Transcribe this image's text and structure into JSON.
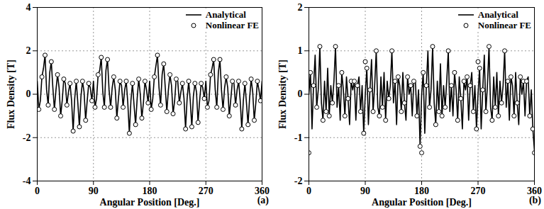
{
  "chart_data": [
    {
      "type": "line",
      "x_label": "Angular Position [Deg.]",
      "y_label": "Flux Density [T]",
      "annotation": "(a)",
      "xlim": [
        0,
        360
      ],
      "xticks": [
        0,
        90,
        180,
        270,
        360
      ],
      "ylim": [
        -4,
        4
      ],
      "yticks": [
        -4,
        -2,
        0,
        2,
        4
      ],
      "grid": true,
      "legend": "top-right",
      "series": [
        {
          "name": "Analytical",
          "type": "line",
          "color": "#000000",
          "line_style": "solid",
          "x": [
            0,
            2.5,
            5,
            7.5,
            10,
            12.5,
            15,
            17.5,
            20,
            22.5,
            25,
            27.5,
            30,
            32.5,
            35,
            37.5,
            40,
            42.5,
            45,
            47.5,
            50,
            52.5,
            55,
            57.5,
            60,
            62.5,
            65,
            67.5,
            70,
            72.5,
            75,
            77.5,
            80,
            82.5,
            85,
            87.5,
            90,
            92.5,
            95,
            97.5,
            100,
            102.5,
            105,
            107.5,
            110,
            112.5,
            115,
            117.5,
            120,
            122.5,
            125,
            127.5,
            130,
            132.5,
            135,
            137.5,
            140,
            142.5,
            145,
            147.5,
            150,
            152.5,
            155,
            157.5,
            160,
            162.5,
            165,
            167.5,
            170,
            172.5,
            175,
            177.5,
            180,
            182.5,
            185,
            187.5,
            190,
            192.5,
            195,
            197.5,
            200,
            202.5,
            205,
            207.5,
            210,
            212.5,
            215,
            217.5,
            220,
            222.5,
            225,
            227.5,
            230,
            232.5,
            235,
            237.5,
            240,
            242.5,
            245,
            247.5,
            250,
            252.5,
            255,
            257.5,
            260,
            262.5,
            265,
            267.5,
            270,
            272.5,
            275,
            277.5,
            280,
            282.5,
            285,
            287.5,
            290,
            292.5,
            295,
            297.5,
            300,
            302.5,
            305,
            307.5,
            310,
            312.5,
            315,
            317.5,
            320,
            322.5,
            325,
            327.5,
            330,
            332.5,
            335,
            337.5,
            340,
            342.5,
            345,
            347.5,
            350,
            352.5,
            355,
            357.5,
            360
          ],
          "values": [
            0.6,
            -0.7,
            -0.3,
            0.8,
            1.2,
            1.8,
            0.2,
            -0.5,
            1.0,
            1.5,
            0.3,
            -0.7,
            0.2,
            0.9,
            0.3,
            -1.0,
            -0.3,
            0.7,
            0.5,
            -0.5,
            0.1,
            0.5,
            -0.3,
            -1.7,
            -0.2,
            0.6,
            -0.4,
            -1.5,
            -0.1,
            0.6,
            0.1,
            -1.2,
            -0.3,
            0.5,
            0.3,
            -0.3,
            0.6,
            -0.6,
            -0.2,
            0.9,
            1.1,
            1.7,
            0.1,
            -0.6,
            1.1,
            1.6,
            0.2,
            -0.6,
            0.3,
            0.8,
            0.2,
            -1.1,
            -0.2,
            0.6,
            0.4,
            -0.6,
            0.2,
            0.6,
            -0.4,
            -1.8,
            -0.3,
            0.5,
            -0.5,
            -1.4,
            -0.2,
            0.7,
            0.0,
            -1.1,
            -0.4,
            0.6,
            0.2,
            -0.4,
            0.6,
            -0.7,
            -0.2,
            0.8,
            1.3,
            1.8,
            0.3,
            -0.5,
            0.9,
            1.4,
            0.3,
            -0.8,
            0.2,
            0.9,
            0.4,
            -0.9,
            -0.3,
            0.7,
            0.6,
            -0.4,
            0.1,
            0.5,
            -0.2,
            -1.6,
            -0.2,
            0.6,
            -0.3,
            -1.5,
            -0.1,
            0.5,
            0.1,
            -1.3,
            -0.3,
            0.5,
            0.3,
            -0.2,
            0.6,
            -0.6,
            -0.3,
            0.9,
            1.2,
            1.6,
            0.2,
            -0.6,
            1.0,
            1.6,
            0.2,
            -0.7,
            0.3,
            0.8,
            0.3,
            -1.0,
            -0.2,
            0.6,
            0.5,
            -0.5,
            0.2,
            0.6,
            -0.3,
            -1.6,
            -0.3,
            0.5,
            -0.4,
            -1.4,
            -0.2,
            0.7,
            0.1,
            -1.2,
            -0.4,
            0.6,
            0.2,
            -0.3,
            0.6
          ]
        },
        {
          "name": "Nonlinear FE",
          "type": "scatter",
          "color": "#000000",
          "marker": "circle",
          "x": [
            2.5,
            7.5,
            12.5,
            17.5,
            22.5,
            27.5,
            32.5,
            37.5,
            42.5,
            47.5,
            52.5,
            57.5,
            62.5,
            67.5,
            72.5,
            77.5,
            82.5,
            87.5,
            92.5,
            97.5,
            102.5,
            107.5,
            112.5,
            117.5,
            122.5,
            127.5,
            132.5,
            137.5,
            142.5,
            147.5,
            152.5,
            157.5,
            162.5,
            167.5,
            172.5,
            177.5,
            182.5,
            187.5,
            192.5,
            197.5,
            202.5,
            207.5,
            212.5,
            217.5,
            222.5,
            227.5,
            232.5,
            237.5,
            242.5,
            247.5,
            252.5,
            257.5,
            262.5,
            267.5,
            272.5,
            277.5,
            282.5,
            287.5,
            292.5,
            297.5,
            302.5,
            307.5,
            312.5,
            317.5,
            322.5,
            327.5,
            332.5,
            337.5,
            342.5,
            347.5,
            352.5,
            357.5
          ],
          "values": [
            -0.7,
            0.8,
            1.8,
            -0.5,
            1.5,
            -0.7,
            0.9,
            -1.0,
            0.7,
            -0.5,
            0.5,
            -1.7,
            0.6,
            -1.5,
            0.6,
            -1.2,
            0.5,
            -0.3,
            -0.6,
            0.9,
            1.7,
            -0.6,
            1.6,
            -0.6,
            0.8,
            -1.1,
            0.6,
            -0.6,
            0.6,
            -1.8,
            0.5,
            -1.4,
            0.7,
            -1.1,
            0.6,
            -0.4,
            -0.7,
            0.8,
            1.8,
            -0.5,
            1.4,
            -0.8,
            0.9,
            -0.9,
            0.7,
            -0.4,
            0.5,
            -1.6,
            0.6,
            -1.5,
            0.5,
            -1.3,
            0.5,
            -0.2,
            -0.6,
            0.9,
            1.6,
            -0.6,
            1.6,
            -0.7,
            0.8,
            -1.0,
            0.6,
            -0.5,
            0.6,
            -1.6,
            0.5,
            -1.4,
            0.7,
            -1.2,
            0.6,
            -0.3
          ]
        }
      ]
    },
    {
      "type": "line",
      "x_label": "Angular Position [Deg.]",
      "y_label": "Flux Density [T]",
      "annotation": "(b)",
      "xlim": [
        0,
        360
      ],
      "xticks": [
        0,
        90,
        180,
        270,
        360
      ],
      "ylim": [
        -2,
        2
      ],
      "yticks": [
        -2,
        -1,
        0,
        1,
        2
      ],
      "grid": true,
      "legend": "top-right",
      "series": [
        {
          "name": "Analytical",
          "type": "line",
          "color": "#000000",
          "line_style": "solid",
          "x": [
            0,
            2.5,
            5,
            7.5,
            10,
            12.5,
            15,
            17.5,
            20,
            22.5,
            25,
            27.5,
            30,
            32.5,
            35,
            37.5,
            40,
            42.5,
            45,
            47.5,
            50,
            52.5,
            55,
            57.5,
            60,
            62.5,
            65,
            67.5,
            70,
            72.5,
            75,
            77.5,
            80,
            82.5,
            85,
            87.5,
            90,
            92.5,
            95,
            97.5,
            100,
            102.5,
            105,
            107.5,
            110,
            112.5,
            115,
            117.5,
            120,
            122.5,
            125,
            127.5,
            130,
            132.5,
            135,
            137.5,
            140,
            142.5,
            145,
            147.5,
            150,
            152.5,
            155,
            157.5,
            160,
            162.5,
            165,
            167.5,
            170,
            172.5,
            175,
            177.5,
            180,
            182.5,
            185,
            187.5,
            190,
            192.5,
            195,
            197.5,
            200,
            202.5,
            205,
            207.5,
            210,
            212.5,
            215,
            217.5,
            220,
            222.5,
            225,
            227.5,
            230,
            232.5,
            235,
            237.5,
            240,
            242.5,
            245,
            247.5,
            250,
            252.5,
            255,
            257.5,
            260,
            262.5,
            265,
            267.5,
            270,
            272.5,
            275,
            277.5,
            280,
            282.5,
            285,
            287.5,
            290,
            292.5,
            295,
            297.5,
            300,
            302.5,
            305,
            307.5,
            310,
            312.5,
            315,
            317.5,
            320,
            322.5,
            325,
            327.5,
            330,
            332.5,
            335,
            337.5,
            340,
            342.5,
            345,
            347.5,
            350,
            352.5,
            355,
            357.5,
            360
          ],
          "values": [
            0,
            0.5,
            -0.8,
            0.2,
            0.9,
            -0.3,
            0.1,
            1.1,
            -0.2,
            -0.6,
            0.3,
            -0.4,
            0.6,
            -0.5,
            0.2,
            -0.2,
            0.3,
            1.1,
            -0.3,
            0.2,
            -0.6,
            0.5,
            0.1,
            -0.5,
            0.4,
            -0.1,
            -0.7,
            0.3,
            0.1,
            0.3,
            -0.6,
            0.2,
            0.4,
            -0.4,
            0.2,
            -0.9,
            0,
            0.6,
            -0.7,
            0.1,
            0.8,
            -0.4,
            0.2,
            1.0,
            -0.3,
            -0.5,
            0.4,
            -0.3,
            0.5,
            -0.6,
            0.3,
            -0.1,
            0.2,
            1.0,
            -0.2,
            0.3,
            -0.7,
            0.4,
            0.2,
            -0.4,
            0.5,
            -0.2,
            -0.6,
            0.4,
            0.0,
            0.2,
            -0.5,
            0.3,
            0.3,
            -0.5,
            0.1,
            -1.2,
            0,
            0.5,
            -0.9,
            0.2,
            1.0,
            -0.3,
            0.1,
            1.1,
            -0.2,
            -0.7,
            0.3,
            -0.4,
            0.7,
            -0.5,
            0.2,
            -0.3,
            0.3,
            1.0,
            -0.4,
            0.2,
            -0.5,
            0.5,
            0.1,
            -0.6,
            0.4,
            -0.1,
            -0.8,
            0.3,
            0.1,
            0.4,
            -0.6,
            0.2,
            0.5,
            -0.4,
            0.2,
            -0.8,
            0,
            0.6,
            -0.8,
            0.1,
            0.9,
            -0.4,
            0.2,
            1.1,
            -0.3,
            -0.6,
            0.4,
            -0.3,
            0.5,
            -0.5,
            0.3,
            -0.2,
            0.2,
            1.0,
            -0.3,
            0.3,
            -0.6,
            0.4,
            0.2,
            -0.5,
            0.5,
            -0.2,
            -0.7,
            0.4,
            0.0,
            0.3,
            -0.5,
            0.3,
            0.4,
            -0.5,
            0.1,
            -0.8,
            -1.3
          ]
        },
        {
          "name": "Nonlinear FE",
          "type": "scatter",
          "color": "#000000",
          "marker": "circle",
          "x": [
            0,
            2.5,
            7.5,
            12.5,
            17.5,
            22.5,
            27.5,
            32.5,
            37.5,
            42.5,
            47.5,
            52.5,
            57.5,
            62.5,
            67.5,
            72.5,
            77.5,
            82.5,
            87.5,
            90,
            92.5,
            97.5,
            102.5,
            107.5,
            112.5,
            117.5,
            122.5,
            127.5,
            132.5,
            137.5,
            142.5,
            147.5,
            152.5,
            157.5,
            162.5,
            167.5,
            172.5,
            177.5,
            180,
            182.5,
            187.5,
            192.5,
            197.5,
            202.5,
            207.5,
            212.5,
            217.5,
            222.5,
            227.5,
            232.5,
            237.5,
            242.5,
            247.5,
            252.5,
            257.5,
            262.5,
            267.5,
            270,
            272.5,
            277.5,
            282.5,
            287.5,
            292.5,
            297.5,
            302.5,
            307.5,
            312.5,
            317.5,
            322.5,
            327.5,
            332.5,
            337.5,
            342.5,
            347.5,
            352.5,
            357.5,
            360
          ],
          "values": [
            -1.35,
            0.5,
            0.2,
            -0.3,
            1.1,
            -0.6,
            -0.4,
            -0.5,
            -0.2,
            1.1,
            0.2,
            0.5,
            -0.5,
            -0.1,
            0.3,
            0.3,
            0.2,
            -0.4,
            -0.9,
            0.75,
            0.6,
            0.1,
            -0.4,
            1.0,
            -0.5,
            -0.3,
            -0.6,
            -0.1,
            1.0,
            0.3,
            0.4,
            -0.4,
            -0.2,
            0.4,
            0.2,
            0.3,
            -0.5,
            -1.2,
            -1.35,
            0.5,
            0.2,
            -0.3,
            1.1,
            -0.7,
            -0.4,
            -0.5,
            -0.3,
            1.0,
            0.2,
            0.5,
            -0.6,
            -0.1,
            0.3,
            0.4,
            0.2,
            -0.4,
            -0.8,
            0.75,
            0.6,
            0.1,
            -0.4,
            1.1,
            -0.6,
            -0.3,
            -0.5,
            -0.2,
            1.0,
            0.3,
            0.4,
            -0.5,
            -0.2,
            0.4,
            0.3,
            0.3,
            -0.5,
            -0.8,
            -1.35
          ]
        }
      ]
    }
  ]
}
